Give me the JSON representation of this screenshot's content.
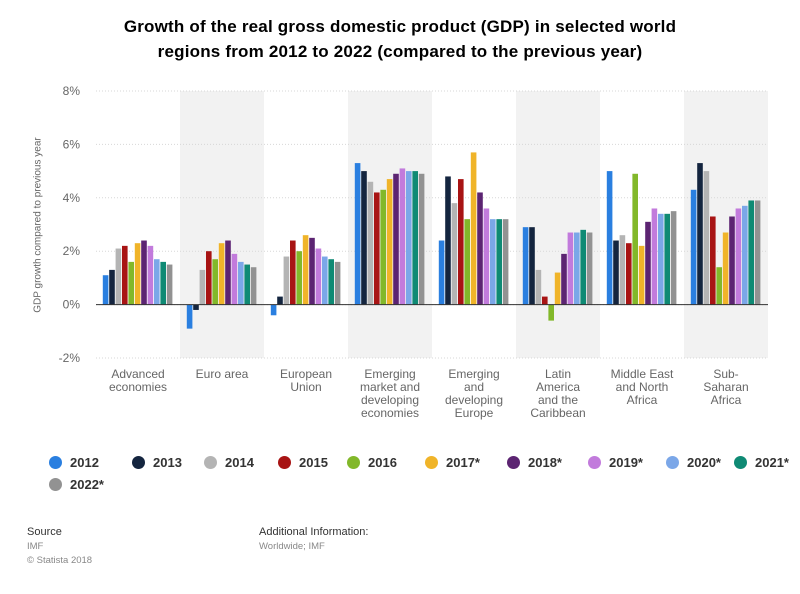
{
  "title_lines": [
    "Growth of the real gross domestic product (GDP) in selected world",
    "regions from 2012 to 2022 (compared to the previous year)"
  ],
  "chart_data": {
    "type": "bar",
    "title": "Growth of the real gross domestic product (GDP) in selected world regions from 2012 to 2022 (compared to the previous year)",
    "ylabel": "GDP growth compared to previous year",
    "xlabel": "",
    "ylim": [
      -2,
      8
    ],
    "yticks": [
      -2,
      0,
      2,
      4,
      6,
      8
    ],
    "ytick_labels": [
      "-2%",
      "0%",
      "2%",
      "4%",
      "6%",
      "8%"
    ],
    "grid": true,
    "legend_position": "bottom",
    "categories": [
      "Advanced economies",
      "Euro area",
      "European Union",
      "Emerging market and developing economies",
      "Emerging and developing Europe",
      "Latin America and the Caribbean",
      "Middle East and North Africa",
      "Sub-Saharan Africa"
    ],
    "category_label_lines": [
      [
        "Advanced",
        "economies"
      ],
      [
        "Euro area"
      ],
      [
        "European",
        "Union"
      ],
      [
        "Emerging",
        "market and",
        "developing",
        "economies"
      ],
      [
        "Emerging",
        "and",
        "developing",
        "Europe"
      ],
      [
        "Latin",
        "America",
        "and the",
        "Caribbean"
      ],
      [
        "Middle East",
        "and North",
        "Africa"
      ],
      [
        "Sub-",
        "Saharan",
        "Africa"
      ]
    ],
    "series": [
      {
        "name": "2012",
        "color": "#2a7fe0",
        "values": [
          1.1,
          -0.9,
          -0.4,
          5.3,
          2.4,
          2.9,
          5.0,
          4.3
        ]
      },
      {
        "name": "2013",
        "color": "#14253f",
        "values": [
          1.3,
          -0.2,
          0.3,
          5.0,
          4.8,
          2.9,
          2.4,
          5.3
        ]
      },
      {
        "name": "2014",
        "color": "#b4b4b4",
        "values": [
          2.1,
          1.3,
          1.8,
          4.6,
          3.8,
          1.3,
          2.6,
          5.0
        ]
      },
      {
        "name": "2015",
        "color": "#a81414",
        "values": [
          2.2,
          2.0,
          2.4,
          4.2,
          4.7,
          0.3,
          2.3,
          3.3
        ]
      },
      {
        "name": "2016",
        "color": "#82b82a",
        "values": [
          1.6,
          1.7,
          2.0,
          4.3,
          3.2,
          -0.6,
          4.9,
          1.4
        ]
      },
      {
        "name": "2017*",
        "color": "#f0b429",
        "values": [
          2.3,
          2.3,
          2.6,
          4.7,
          5.7,
          1.2,
          2.2,
          2.7
        ]
      },
      {
        "name": "2018*",
        "color": "#5c2472",
        "values": [
          2.4,
          2.4,
          2.5,
          4.9,
          4.2,
          1.9,
          3.1,
          3.3
        ]
      },
      {
        "name": "2019*",
        "color": "#c27bdc",
        "values": [
          2.2,
          1.9,
          2.1,
          5.1,
          3.6,
          2.7,
          3.6,
          3.6
        ]
      },
      {
        "name": "2020*",
        "color": "#7ba7e8",
        "values": [
          1.7,
          1.6,
          1.8,
          5.0,
          3.2,
          2.7,
          3.4,
          3.7
        ]
      },
      {
        "name": "2021*",
        "color": "#0f8a74",
        "values": [
          1.6,
          1.5,
          1.7,
          5.0,
          3.2,
          2.8,
          3.4,
          3.9
        ]
      },
      {
        "name": "2022*",
        "color": "#929292",
        "values": [
          1.5,
          1.4,
          1.6,
          4.9,
          3.2,
          2.7,
          3.5,
          3.9
        ]
      }
    ]
  },
  "source": {
    "heading": "Source",
    "lines": [
      "IMF",
      "© Statista 2018"
    ]
  },
  "additional_info": {
    "heading": "Additional Information:",
    "lines": [
      "Worldwide; IMF"
    ]
  }
}
